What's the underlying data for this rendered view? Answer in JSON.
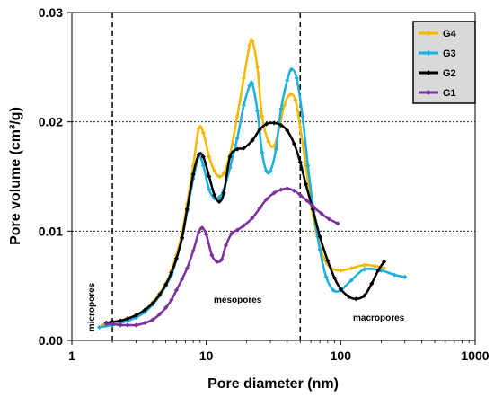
{
  "chart_data": {
    "type": "line",
    "title": "",
    "xlabel": "Pore diameter (nm)",
    "ylabel": "Pore volume (cm³/g)",
    "x_scale": "log",
    "xlim": [
      1,
      1000
    ],
    "ylim": [
      0,
      0.03
    ],
    "x_tick_labels": [
      "1",
      "10",
      "100",
      "1000"
    ],
    "y_tick_labels": [
      "0.00",
      "0.01",
      "0.02",
      "0.03"
    ],
    "y_gridlines": [
      0.01,
      0.02
    ],
    "grid": "horizontal dotted at 0.01 and 0.02",
    "legend_position": "top-right",
    "vertical_dashed_lines": [
      2,
      50
    ],
    "annotations": [
      {
        "text": "micropores",
        "x": 1.3,
        "y": 0.003,
        "rotation": -90
      },
      {
        "text": "mesopores",
        "x": 18,
        "y": 0.0037
      },
      {
        "text": "macropores",
        "x": 230,
        "y": 0.0022
      }
    ],
    "series": [
      {
        "name": "G4",
        "color": "#F5B800",
        "marker": "diamond",
        "points": [
          [
            1.7,
            0.0014
          ],
          [
            2.0,
            0.0016
          ],
          [
            2.3,
            0.0018
          ],
          [
            2.6,
            0.002
          ],
          [
            3.0,
            0.0023
          ],
          [
            3.5,
            0.0028
          ],
          [
            4.0,
            0.0035
          ],
          [
            4.5,
            0.0043
          ],
          [
            5.0,
            0.0052
          ],
          [
            5.5,
            0.0064
          ],
          [
            6.0,
            0.0078
          ],
          [
            6.6,
            0.0098
          ],
          [
            7.2,
            0.0125
          ],
          [
            8.0,
            0.016
          ],
          [
            8.8,
            0.0194
          ],
          [
            9.5,
            0.019
          ],
          [
            10.5,
            0.0168
          ],
          [
            11.5,
            0.0155
          ],
          [
            12.5,
            0.015
          ],
          [
            13.5,
            0.0153
          ],
          [
            15,
            0.017
          ],
          [
            17,
            0.0205
          ],
          [
            19,
            0.024
          ],
          [
            21,
            0.027
          ],
          [
            22,
            0.0274
          ],
          [
            24,
            0.025
          ],
          [
            26,
            0.0205
          ],
          [
            29,
            0.0182
          ],
          [
            32,
            0.0178
          ],
          [
            35,
            0.0195
          ],
          [
            38,
            0.0215
          ],
          [
            42,
            0.0225
          ],
          [
            46,
            0.022
          ],
          [
            50,
            0.0195
          ],
          [
            55,
            0.016
          ],
          [
            60,
            0.0125
          ],
          [
            67,
            0.0095
          ],
          [
            75,
            0.0075
          ],
          [
            85,
            0.0066
          ],
          [
            100,
            0.0064
          ],
          [
            120,
            0.0066
          ],
          [
            150,
            0.0069
          ],
          [
            180,
            0.0068
          ],
          [
            210,
            0.0066
          ]
        ]
      },
      {
        "name": "G3",
        "color": "#1AB0E0",
        "marker": "diamond",
        "points": [
          [
            1.6,
            0.0012
          ],
          [
            2.0,
            0.0014
          ],
          [
            2.3,
            0.0016
          ],
          [
            2.6,
            0.0018
          ],
          [
            3.0,
            0.0021
          ],
          [
            3.5,
            0.0026
          ],
          [
            4.0,
            0.0033
          ],
          [
            4.5,
            0.0041
          ],
          [
            5.0,
            0.005
          ],
          [
            5.5,
            0.006
          ],
          [
            6.0,
            0.0074
          ],
          [
            6.6,
            0.0093
          ],
          [
            7.2,
            0.0118
          ],
          [
            8.0,
            0.0148
          ],
          [
            8.8,
            0.0168
          ],
          [
            9.5,
            0.016
          ],
          [
            10.5,
            0.0138
          ],
          [
            11.5,
            0.013
          ],
          [
            12.5,
            0.0131
          ],
          [
            13.5,
            0.0138
          ],
          [
            15,
            0.0158
          ],
          [
            17,
            0.0185
          ],
          [
            19,
            0.0215
          ],
          [
            21,
            0.0233
          ],
          [
            22,
            0.0235
          ],
          [
            24,
            0.021
          ],
          [
            26,
            0.0172
          ],
          [
            28,
            0.0155
          ],
          [
            30,
            0.0155
          ],
          [
            33,
            0.0175
          ],
          [
            36,
            0.0212
          ],
          [
            40,
            0.0238
          ],
          [
            43,
            0.0248
          ],
          [
            47,
            0.024
          ],
          [
            52,
            0.0205
          ],
          [
            57,
            0.016
          ],
          [
            63,
            0.0118
          ],
          [
            70,
            0.0083
          ],
          [
            78,
            0.0058
          ],
          [
            88,
            0.0046
          ],
          [
            100,
            0.0046
          ],
          [
            120,
            0.0055
          ],
          [
            150,
            0.0065
          ],
          [
            200,
            0.0064
          ],
          [
            250,
            0.006
          ],
          [
            300,
            0.0058
          ]
        ]
      },
      {
        "name": "G2",
        "color": "#000000",
        "marker": "diamond",
        "points": [
          [
            1.8,
            0.0016
          ],
          [
            2.0,
            0.0017
          ],
          [
            2.3,
            0.0018
          ],
          [
            2.6,
            0.002
          ],
          [
            3.0,
            0.0023
          ],
          [
            3.5,
            0.0028
          ],
          [
            4.0,
            0.0034
          ],
          [
            4.5,
            0.0042
          ],
          [
            5.0,
            0.0051
          ],
          [
            5.5,
            0.0062
          ],
          [
            6.0,
            0.0075
          ],
          [
            6.6,
            0.0094
          ],
          [
            7.2,
            0.012
          ],
          [
            8.0,
            0.0152
          ],
          [
            8.8,
            0.017
          ],
          [
            9.5,
            0.0168
          ],
          [
            10.5,
            0.015
          ],
          [
            11.5,
            0.0133
          ],
          [
            12.5,
            0.0127
          ],
          [
            13.5,
            0.0135
          ],
          [
            15,
            0.0168
          ],
          [
            17,
            0.0175
          ],
          [
            19,
            0.0176
          ],
          [
            22,
            0.0183
          ],
          [
            25,
            0.0193
          ],
          [
            28,
            0.0198
          ],
          [
            32,
            0.0199
          ],
          [
            36,
            0.0197
          ],
          [
            40,
            0.0192
          ],
          [
            45,
            0.018
          ],
          [
            50,
            0.0163
          ],
          [
            55,
            0.0143
          ],
          [
            62,
            0.012
          ],
          [
            70,
            0.0095
          ],
          [
            80,
            0.0073
          ],
          [
            90,
            0.0057
          ],
          [
            100,
            0.0047
          ],
          [
            115,
            0.004
          ],
          [
            130,
            0.0038
          ],
          [
            150,
            0.0041
          ],
          [
            170,
            0.0052
          ],
          [
            190,
            0.0064
          ],
          [
            210,
            0.0072
          ]
        ]
      },
      {
        "name": "G1",
        "color": "#7B2FA0",
        "marker": "diamond",
        "points": [
          [
            1.8,
            0.0015
          ],
          [
            2.0,
            0.0015
          ],
          [
            2.3,
            0.0014
          ],
          [
            2.6,
            0.0014
          ],
          [
            3.0,
            0.0014
          ],
          [
            3.5,
            0.0016
          ],
          [
            4.0,
            0.0019
          ],
          [
            4.5,
            0.0024
          ],
          [
            5.0,
            0.003
          ],
          [
            5.5,
            0.0037
          ],
          [
            6.0,
            0.0046
          ],
          [
            6.6,
            0.0056
          ],
          [
            7.2,
            0.0066
          ],
          [
            8.0,
            0.0082
          ],
          [
            8.8,
            0.0099
          ],
          [
            9.3,
            0.0103
          ],
          [
            10.0,
            0.0097
          ],
          [
            11.0,
            0.0078
          ],
          [
            12.0,
            0.0072
          ],
          [
            13.0,
            0.0074
          ],
          [
            14.0,
            0.0087
          ],
          [
            15.5,
            0.0098
          ],
          [
            17,
            0.0101
          ],
          [
            19,
            0.0105
          ],
          [
            22,
            0.0112
          ],
          [
            25,
            0.0121
          ],
          [
            28,
            0.0129
          ],
          [
            32,
            0.0135
          ],
          [
            36,
            0.0138
          ],
          [
            40,
            0.0139
          ],
          [
            45,
            0.0137
          ],
          [
            50,
            0.0133
          ],
          [
            56,
            0.0128
          ],
          [
            63,
            0.0122
          ],
          [
            72,
            0.0116
          ],
          [
            82,
            0.0111
          ],
          [
            95,
            0.0107
          ]
        ]
      }
    ]
  }
}
